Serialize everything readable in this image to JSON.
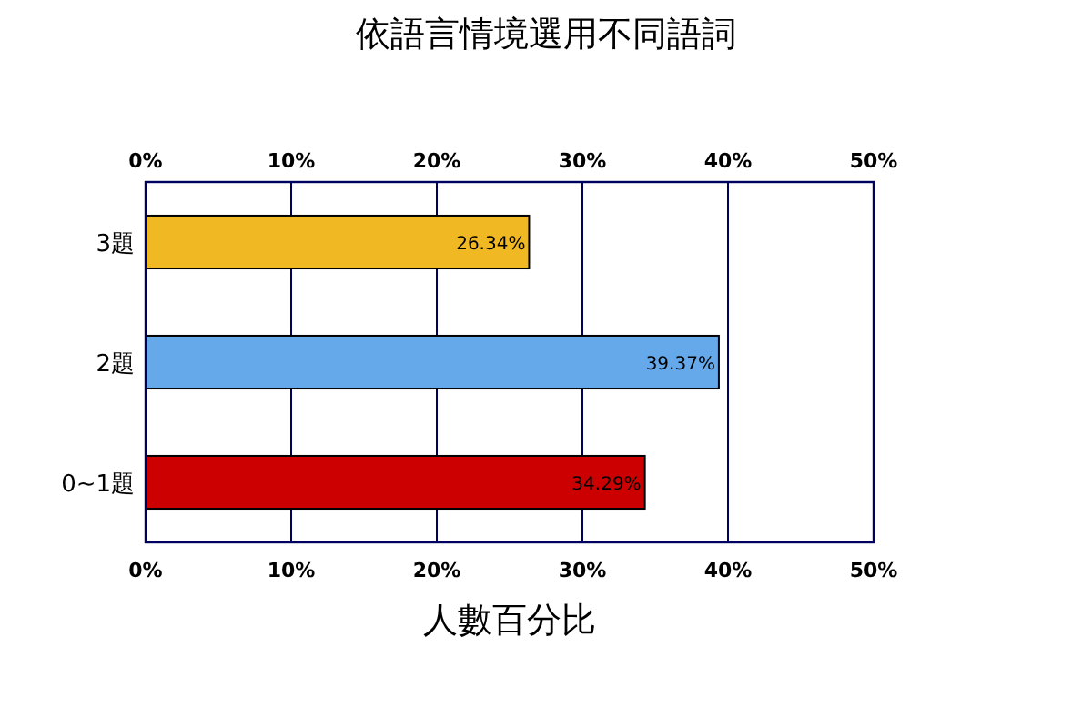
{
  "chart_data": {
    "type": "bar",
    "orientation": "horizontal",
    "title": "依語言情境選用不同語詞",
    "xlabel": "人數百分比",
    "categories": [
      "3題",
      "2題",
      "0~1題"
    ],
    "values": [
      26.34,
      39.37,
      34.29
    ],
    "colors": [
      "#f0b823",
      "#65a9eb",
      "#cc0000"
    ],
    "value_labels": [
      "26.34%",
      "39.37%",
      "34.29%"
    ],
    "xlim": [
      0,
      50
    ],
    "xticks": [
      {
        "value": 0,
        "label": "0%"
      },
      {
        "value": 10,
        "label": "10%"
      },
      {
        "value": 20,
        "label": "20%"
      },
      {
        "value": 30,
        "label": "30%"
      },
      {
        "value": 40,
        "label": "40%"
      },
      {
        "value": 50,
        "label": "50%"
      }
    ],
    "x2lim": [
      0,
      50
    ],
    "x2ticks": [
      {
        "value": 0,
        "label": "0%"
      },
      {
        "value": 10,
        "label": "10%"
      },
      {
        "value": 20,
        "label": "20%"
      },
      {
        "value": 30,
        "label": "30%"
      },
      {
        "value": 40,
        "label": "40%"
      },
      {
        "value": 50,
        "label": "50%"
      }
    ],
    "grid": "x"
  }
}
